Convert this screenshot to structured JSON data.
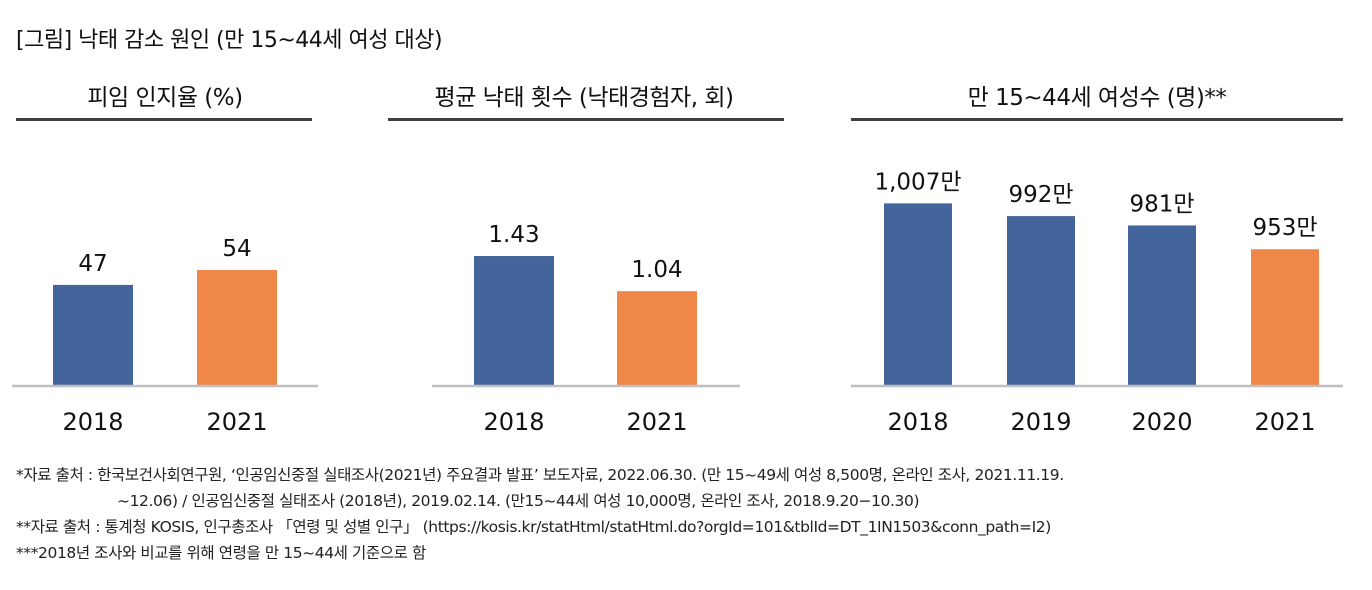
{
  "figure_title": "[그림] 낙태 감소 원인 (만 15~44세 여성 대상)",
  "colors": {
    "blue": "#43659b",
    "orange": "#ef8748",
    "axis": "#bfbfbf",
    "rule": "#3f3f3f"
  },
  "chart_data": [
    {
      "type": "bar",
      "title": "피임 인지율 (%)",
      "categories": [
        "2018",
        "2021"
      ],
      "values": [
        47,
        54
      ],
      "data_labels": [
        "47",
        "54"
      ],
      "bar_colors": [
        "blue",
        "orange"
      ],
      "xlabel": "",
      "ylabel": "",
      "ylim": [
        0,
        108
      ],
      "grid": false,
      "legend": "none"
    },
    {
      "type": "bar",
      "title": "평균 낙태 횟수 (낙태경험자, 회)",
      "categories": [
        "2018",
        "2021"
      ],
      "values": [
        1.43,
        1.04
      ],
      "data_labels": [
        "1.43",
        "1.04"
      ],
      "bar_colors": [
        "blue",
        "orange"
      ],
      "xlabel": "",
      "ylabel": "",
      "ylim": [
        0,
        2.55
      ],
      "grid": false,
      "legend": "none"
    },
    {
      "type": "bar",
      "title": "만 15~44세 여성수 (명)**",
      "categories": [
        "2018",
        "2019",
        "2020",
        "2021"
      ],
      "values": [
        1007,
        992,
        981,
        953
      ],
      "data_labels": [
        "1,007만",
        "992만",
        "981만",
        "953만"
      ],
      "unit": "만 명",
      "bar_colors": [
        "blue",
        "blue",
        "blue",
        "orange"
      ],
      "xlabel": "",
      "ylabel": "",
      "ylim": [
        793,
        1064
      ],
      "grid": false,
      "legend": "none"
    }
  ],
  "footnotes": [
    "*자료 출처 : 한국보건사회연구원, ‘인공임신중절 실태조사(2021년) 주요결과 발표’ 보도자료, 2022.06.30. (만 15~49세 여성 8,500명, 온라인 조사, 2021.11.19.",
    "~12.06) / 인공임신중절 실태조사 (2018년), 2019.02.14. (만15~44세 여성 10,000명, 온라인 조사, 2018.9.20−10.30)",
    "**자료 출처 : 통계청 KOSIS, 인구총조사 「연령 및 성별 인구」 (https://kosis.kr/statHtml/statHtml.do?orgId=101&tblId=DT_1IN1503&conn_path=I2)",
    "***2018년 조사와 비교를 위해 연령을 만 15~44세 기준으로 함"
  ]
}
